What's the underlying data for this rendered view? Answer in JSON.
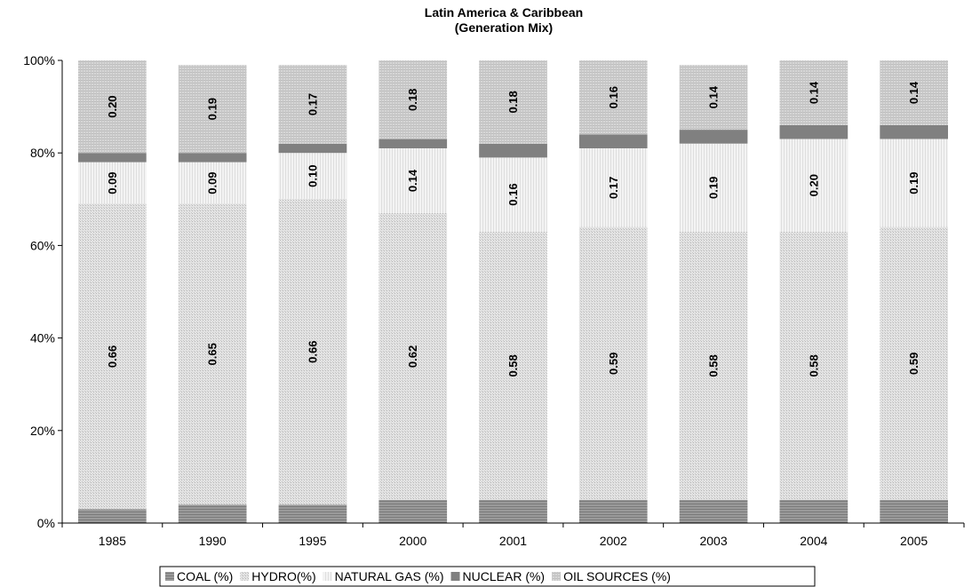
{
  "chart_data": {
    "type": "bar",
    "stacked": true,
    "title": "Latin America & Caribbean",
    "subtitle": "(Generation Mix)",
    "xlabel": "",
    "ylabel": "",
    "ylim": [
      0,
      1
    ],
    "yticks": [
      "0%",
      "20%",
      "40%",
      "60%",
      "80%",
      "100%"
    ],
    "grid": false,
    "legend_position": "bottom",
    "categories": [
      "1985",
      "1990",
      "1995",
      "2000",
      "2001",
      "2002",
      "2003",
      "2004",
      "2005"
    ],
    "series": [
      {
        "name": "COAL (%)",
        "color": "#8c8c8c",
        "pattern": "hlines",
        "values": [
          0.03,
          0.04,
          0.04,
          0.05,
          0.05,
          0.05,
          0.05,
          0.05,
          0.05
        ],
        "labels": [
          "",
          "",
          "",
          "",
          "",
          "",
          "",
          "",
          ""
        ]
      },
      {
        "name": "HYDRO(%)",
        "color": "#d9d9d9",
        "pattern": "dots",
        "values": [
          0.66,
          0.65,
          0.66,
          0.62,
          0.58,
          0.59,
          0.58,
          0.58,
          0.59
        ],
        "labels": [
          "0.66",
          "0.65",
          "0.66",
          "0.62",
          "0.58",
          "0.59",
          "0.58",
          "0.58",
          "0.59"
        ]
      },
      {
        "name": "NATURAL GAS (%)",
        "color": "#f0f0f0",
        "pattern": "vlines",
        "values": [
          0.09,
          0.09,
          0.1,
          0.14,
          0.16,
          0.17,
          0.19,
          0.2,
          0.19
        ],
        "labels": [
          "0.09",
          "0.09",
          "0.10",
          "0.14",
          "0.16",
          "0.17",
          "0.19",
          "0.20",
          "0.19"
        ]
      },
      {
        "name": "NUCLEAR (%)",
        "color": "#808080",
        "pattern": "solid",
        "values": [
          0.02,
          0.02,
          0.02,
          0.02,
          0.03,
          0.03,
          0.03,
          0.03,
          0.03
        ],
        "labels": [
          "",
          "",
          "",
          "",
          "",
          "",
          "",
          "",
          ""
        ]
      },
      {
        "name": "OIL SOURCES (%)",
        "color": "#cfcfcf",
        "pattern": "grid",
        "values": [
          0.2,
          0.19,
          0.17,
          0.18,
          0.18,
          0.16,
          0.14,
          0.14,
          0.14
        ],
        "labels": [
          "0.20",
          "0.19",
          "0.17",
          "0.18",
          "0.18",
          "0.16",
          "0.14",
          "0.14",
          "0.14"
        ]
      }
    ]
  }
}
